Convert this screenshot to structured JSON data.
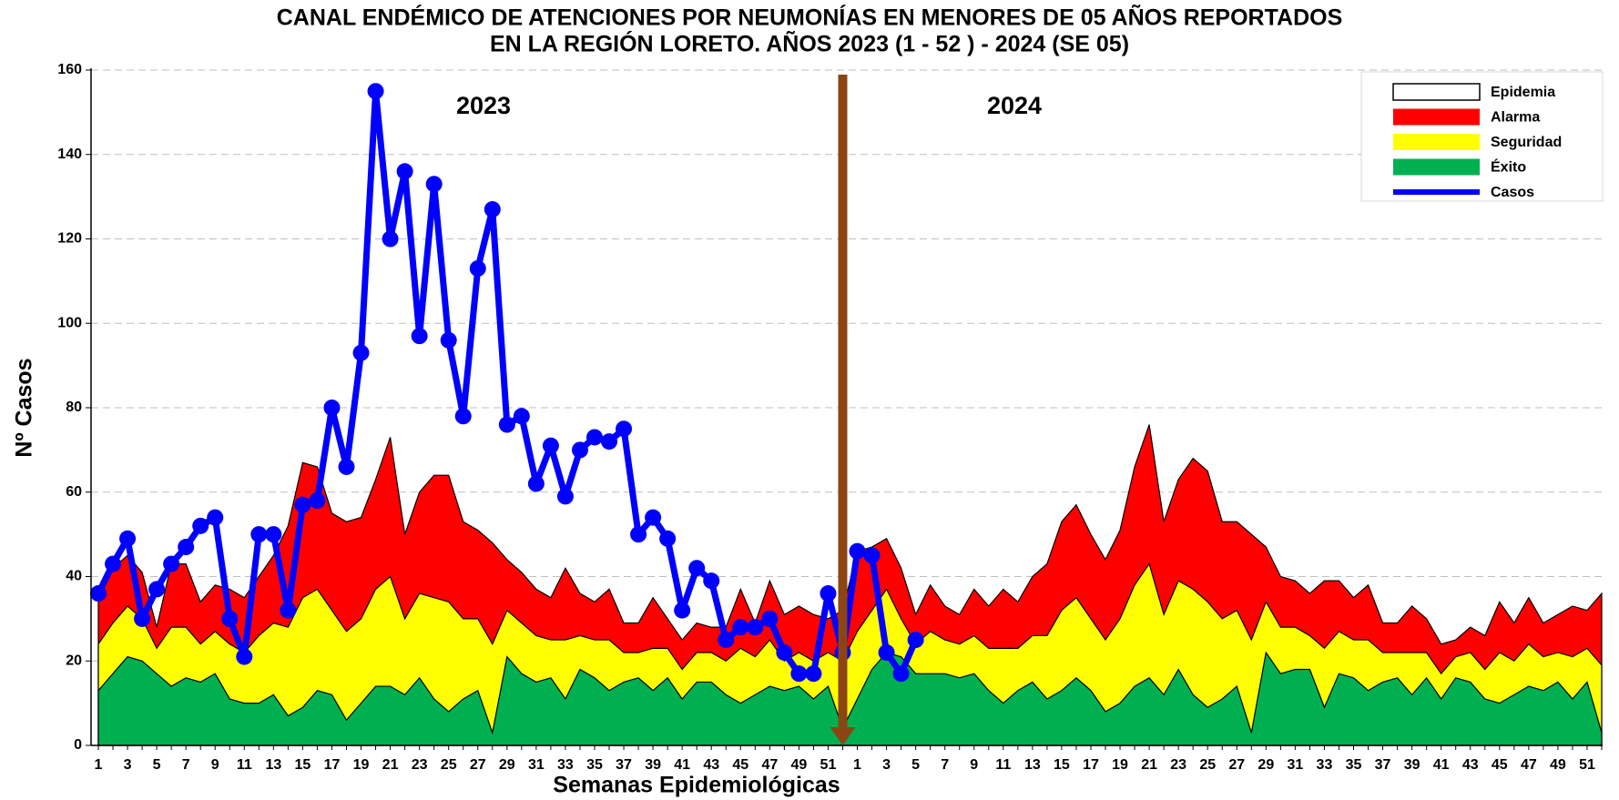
{
  "chart_data": {
    "type": "area",
    "title": [
      "CANAL ENDÉMICO DE ATENCIONES POR NEUMONÍAS EN MENORES DE 05 AÑOS REPORTADOS",
      "EN LA REGIÓN LORETO. AÑOS 2023 (1 - 52 ) - 2024 (SE  05)"
    ],
    "x_label": "Semanas Epidemiológicas",
    "y_label": "Nº Casos",
    "annotations": [
      "2023",
      "2024"
    ],
    "categories": [
      "1",
      null,
      "3",
      null,
      "5",
      null,
      "7",
      null,
      "9",
      null,
      "11",
      null,
      "13",
      null,
      "15",
      null,
      "17",
      null,
      "19",
      null,
      "21",
      null,
      "23",
      null,
      "25",
      null,
      "27",
      null,
      "29",
      null,
      "31",
      null,
      "33",
      null,
      "35",
      null,
      "37",
      null,
      "39",
      null,
      "41",
      null,
      "43",
      null,
      "45",
      null,
      "47",
      null,
      "49",
      null,
      "51",
      null,
      "1",
      null,
      "3",
      null,
      "5",
      null,
      "7",
      null,
      "9",
      null,
      "11",
      null,
      "13",
      null,
      "15",
      null,
      "17",
      null,
      "19",
      null,
      "21",
      null,
      "23",
      null,
      "25",
      null,
      "27",
      null,
      "29",
      null,
      "31",
      null,
      "33",
      null,
      "35",
      null,
      "37",
      null,
      "39",
      null,
      "41",
      null,
      "43",
      null,
      "45",
      null,
      "47",
      null,
      "49",
      null,
      "51",
      null
    ],
    "ylim": [
      0,
      160
    ],
    "yticks": [
      0,
      20,
      40,
      60,
      80,
      100,
      120,
      140,
      160
    ],
    "grid": true,
    "legend": "upper right",
    "series": [
      {
        "name": "Epidemia",
        "color": "#ffffff"
      },
      {
        "name": "Alarma",
        "color": "#ff0000",
        "type": "area",
        "values": [
          35,
          42,
          45,
          41,
          28,
          43,
          43,
          34,
          38,
          37,
          35,
          40,
          45,
          52,
          67,
          66,
          55,
          53,
          54,
          63,
          73,
          50,
          60,
          64,
          64,
          53,
          51,
          48,
          44,
          41,
          37,
          35,
          42,
          36,
          34,
          37,
          29,
          29,
          35,
          30,
          25,
          29,
          28,
          28,
          37,
          29,
          39,
          31,
          33,
          31,
          30,
          32,
          46,
          47,
          49,
          42,
          31,
          38,
          33,
          31,
          37,
          33,
          37,
          34,
          40,
          43,
          53,
          57,
          50,
          44,
          51,
          66,
          76,
          53,
          63,
          68,
          65,
          53,
          53,
          50,
          47,
          40,
          39,
          36,
          39,
          39,
          35,
          38,
          29,
          29,
          33,
          30,
          24,
          25,
          28,
          26,
          34,
          29,
          35,
          29,
          31,
          33,
          32,
          36
        ]
      },
      {
        "name": "Seguridad",
        "color": "#ffff00",
        "type": "area",
        "values": [
          24,
          29,
          33,
          30,
          23,
          28,
          28,
          24,
          27,
          24,
          22,
          26,
          29,
          28,
          35,
          37,
          32,
          27,
          30,
          37,
          40,
          30,
          36,
          35,
          34,
          30,
          30,
          24,
          32,
          29,
          26,
          25,
          25,
          26,
          25,
          25,
          22,
          22,
          23,
          23,
          18,
          22,
          22,
          20,
          23,
          21,
          25,
          20,
          22,
          20,
          22,
          20,
          27,
          32,
          37,
          30,
          24,
          27,
          25,
          24,
          26,
          23,
          23,
          23,
          26,
          26,
          32,
          35,
          30,
          25,
          30,
          38,
          43,
          31,
          39,
          37,
          34,
          30,
          32,
          25,
          34,
          28,
          28,
          26,
          23,
          27,
          25,
          25,
          22,
          22,
          22,
          22,
          17,
          21,
          22,
          18,
          22,
          20,
          24,
          21,
          22,
          21,
          23,
          19
        ]
      },
      {
        "name": "Éxito",
        "color": "#00b050",
        "type": "area",
        "values": [
          13,
          17,
          21,
          20,
          17,
          14,
          16,
          15,
          17,
          11,
          10,
          10,
          12,
          7,
          9,
          13,
          12,
          6,
          10,
          14,
          14,
          12,
          16,
          11,
          8,
          11,
          13,
          3,
          21,
          17,
          15,
          16,
          11,
          18,
          16,
          13,
          15,
          16,
          13,
          16,
          11,
          15,
          15,
          12,
          10,
          12,
          14,
          13,
          14,
          11,
          14,
          4,
          11,
          18,
          22,
          21,
          17,
          17,
          17,
          16,
          17,
          13,
          10,
          13,
          15,
          11,
          13,
          16,
          13,
          8,
          10,
          14,
          16,
          12,
          18,
          12,
          9,
          11,
          14,
          3,
          22,
          17,
          18,
          18,
          9,
          17,
          16,
          13,
          15,
          16,
          12,
          16,
          11,
          16,
          15,
          11,
          10,
          12,
          14,
          13,
          15,
          11,
          15,
          3
        ]
      },
      {
        "name": "Casos",
        "color": "#0000ff",
        "type": "line",
        "values": [
          36,
          43,
          49,
          30,
          37,
          43,
          47,
          52,
          54,
          30,
          21,
          50,
          50,
          32,
          57,
          58,
          80,
          66,
          93,
          155,
          120,
          136,
          97,
          133,
          96,
          78,
          113,
          127,
          76,
          78,
          62,
          71,
          59,
          70,
          73,
          72,
          75,
          50,
          54,
          49,
          32,
          42,
          39,
          25,
          28,
          28,
          30,
          22,
          17,
          17,
          36,
          22,
          46,
          45,
          22,
          17,
          25,
          null,
          null,
          null,
          null,
          null,
          null,
          null,
          null,
          null,
          null,
          null,
          null,
          null,
          null,
          null,
          null,
          null,
          null,
          null,
          null,
          null,
          null,
          null,
          null,
          null,
          null,
          null,
          null,
          null,
          null,
          null,
          null,
          null,
          null,
          null,
          null,
          null,
          null,
          null,
          null,
          null,
          null,
          null,
          null,
          null,
          null,
          null
        ]
      }
    ]
  }
}
